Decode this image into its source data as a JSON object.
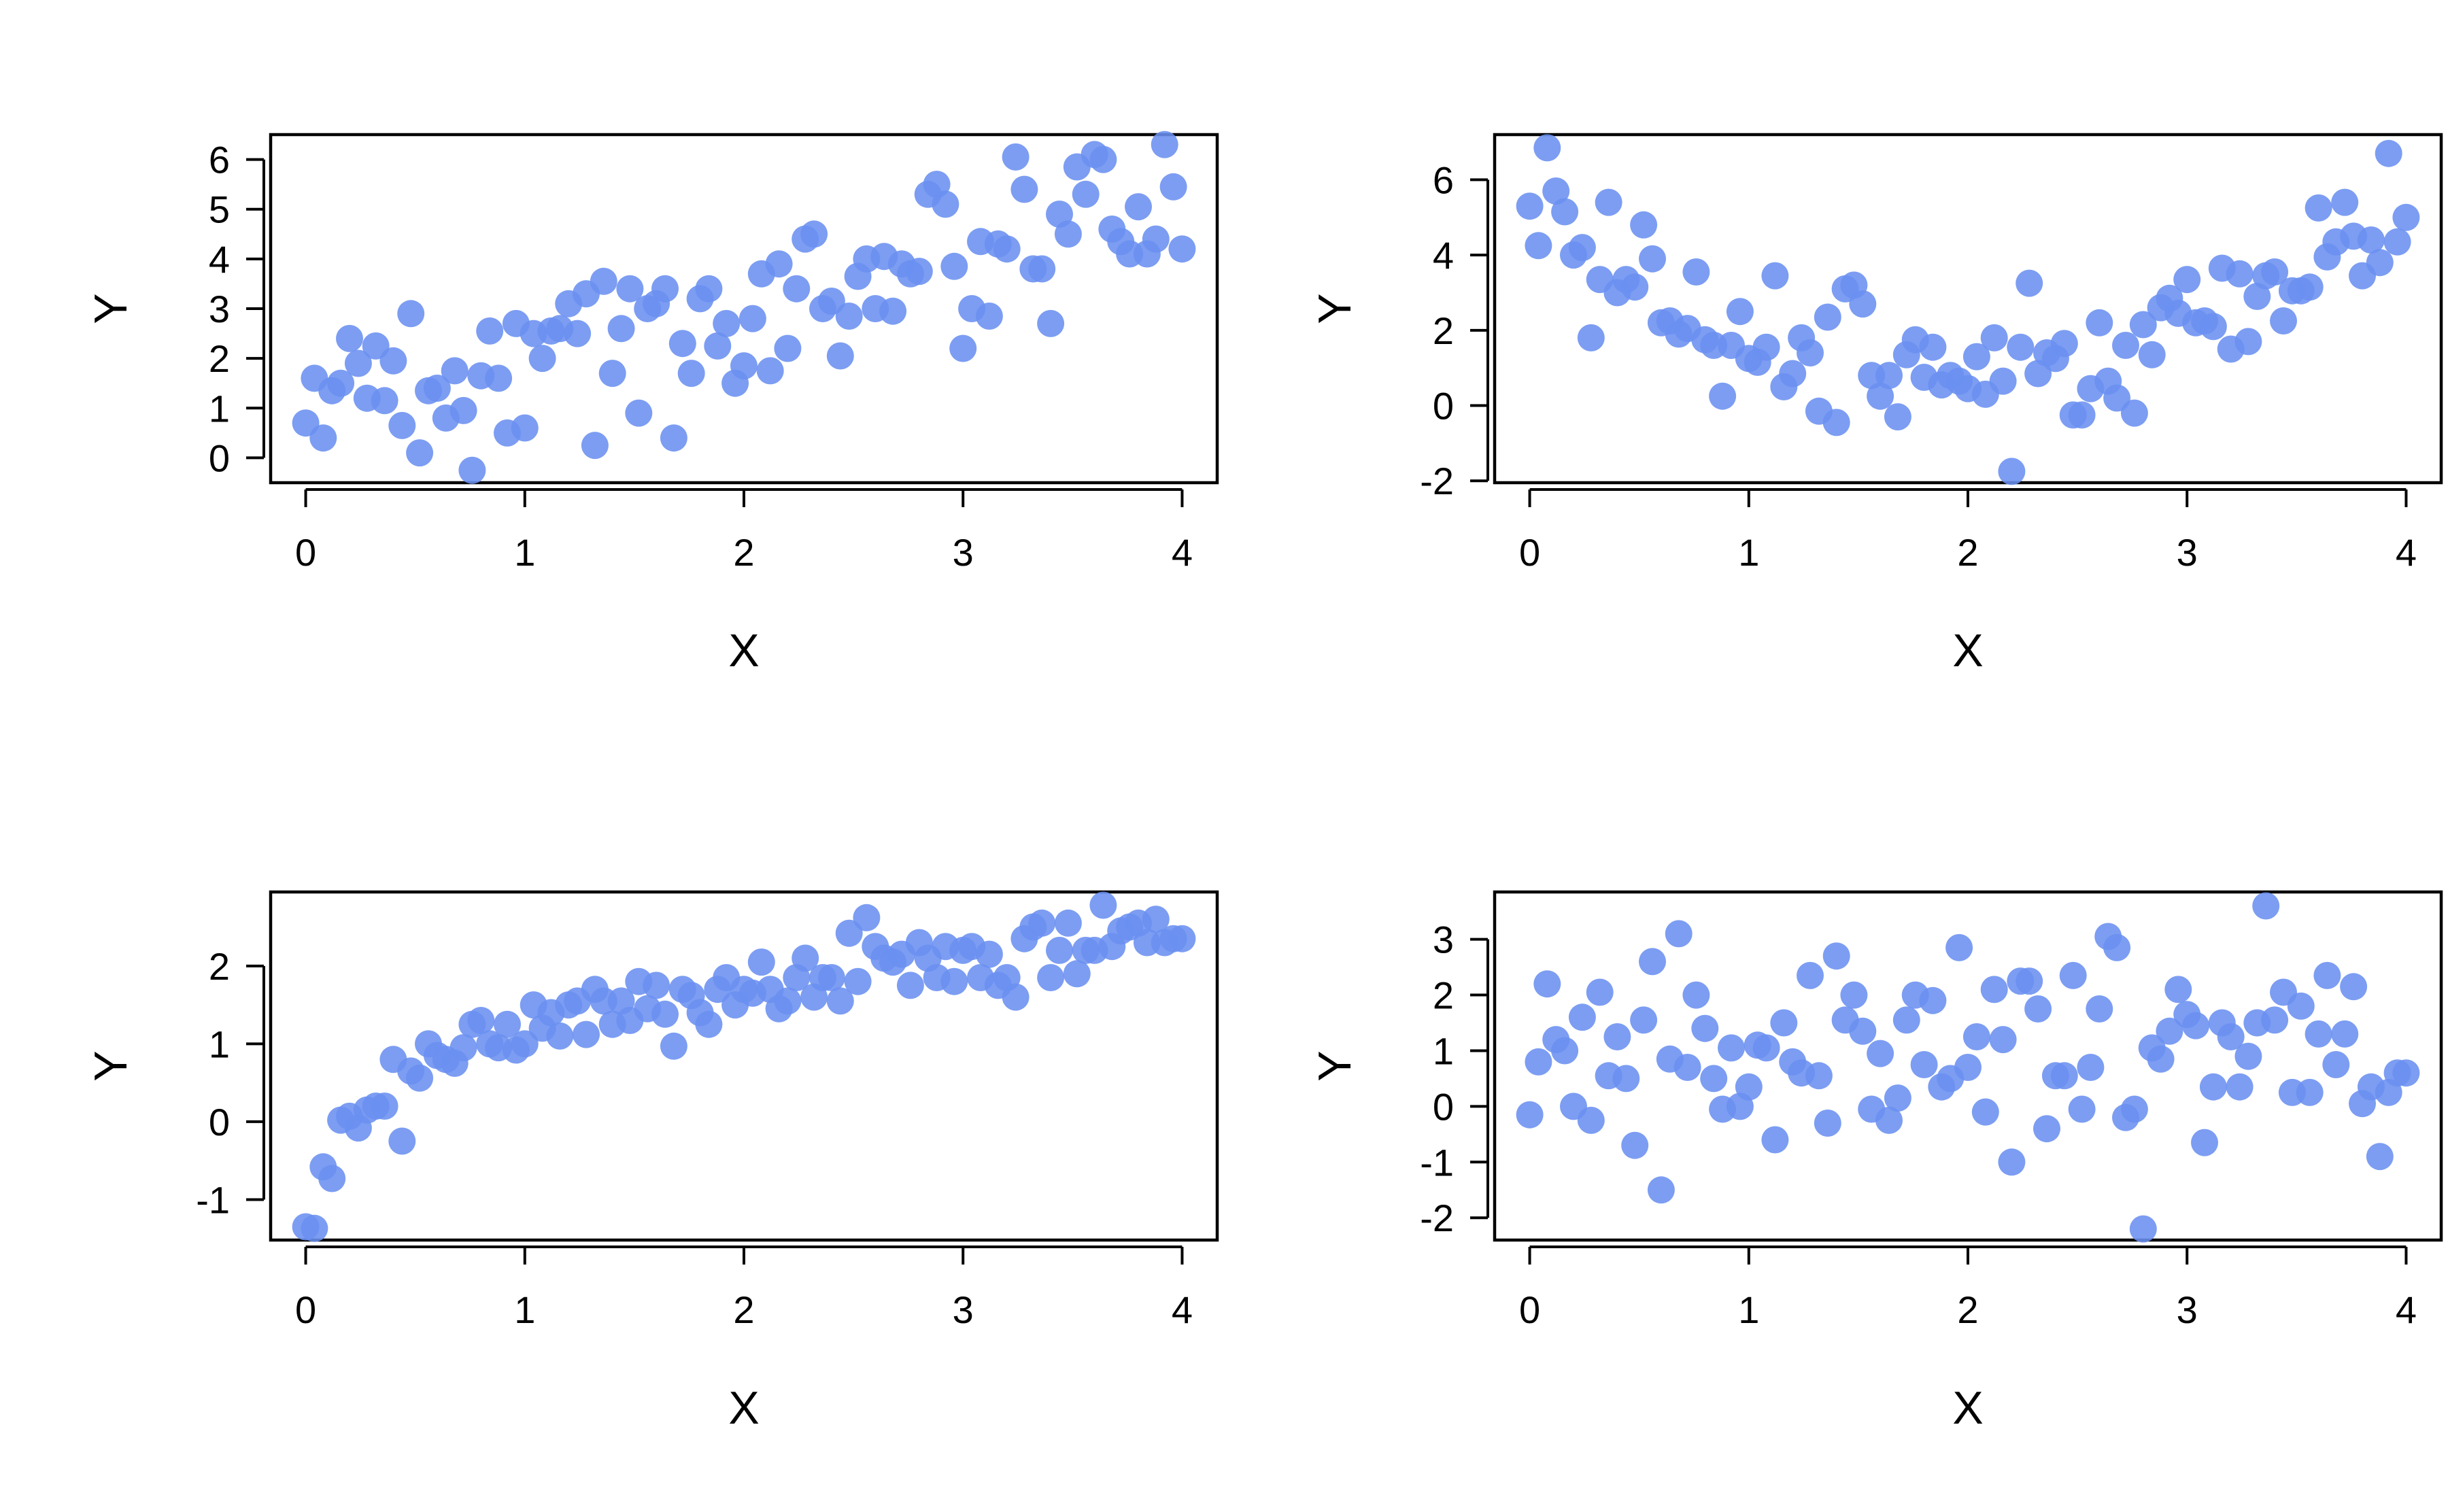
{
  "chart_data": [
    {
      "type": "scatter",
      "panel": "top-left",
      "xlabel": "X",
      "ylabel": "Y",
      "xlim": [
        -0.16,
        4.16
      ],
      "ylim": [
        -0.5,
        6.5
      ],
      "xticks": [
        0,
        1,
        2,
        3,
        4
      ],
      "yticks": [
        0,
        1,
        2,
        3,
        4,
        5,
        6
      ],
      "color": "#6a8ff0",
      "x": [
        0.0,
        0.04,
        0.08,
        0.12,
        0.16,
        0.2,
        0.24,
        0.28,
        0.32,
        0.36,
        0.4,
        0.44,
        0.48,
        0.52,
        0.56,
        0.6,
        0.64,
        0.68,
        0.72,
        0.76,
        0.8,
        0.84,
        0.88,
        0.92,
        0.96,
        1.0,
        1.04,
        1.08,
        1.12,
        1.16,
        1.2,
        1.24,
        1.28,
        1.32,
        1.36,
        1.4,
        1.44,
        1.48,
        1.52,
        1.56,
        1.6,
        1.64,
        1.68,
        1.72,
        1.76,
        1.8,
        1.84,
        1.88,
        1.92,
        1.96,
        2.0,
        2.04,
        2.08,
        2.12,
        2.16,
        2.2,
        2.24,
        2.28,
        2.32,
        2.36,
        2.4,
        2.44,
        2.48,
        2.52,
        2.56,
        2.6,
        2.64,
        2.68,
        2.72,
        2.76,
        2.8,
        2.84,
        2.88,
        2.92,
        2.96,
        3.0,
        3.04,
        3.08,
        3.12,
        3.16,
        3.2,
        3.24,
        3.28,
        3.32,
        3.36,
        3.4,
        3.44,
        3.48,
        3.52,
        3.56,
        3.6,
        3.64,
        3.68,
        3.72,
        3.76,
        3.8,
        3.84,
        3.88,
        3.92,
        3.96,
        4.0
      ],
      "y": [
        0.7,
        1.6,
        0.4,
        1.35,
        1.5,
        2.4,
        1.9,
        1.2,
        2.25,
        1.15,
        1.95,
        0.65,
        2.9,
        0.1,
        1.35,
        1.4,
        0.8,
        1.75,
        0.95,
        -0.25,
        1.65,
        2.55,
        1.6,
        0.5,
        2.7,
        0.6,
        2.5,
        2.0,
        2.55,
        2.6,
        3.1,
        2.5,
        3.3,
        0.25,
        3.55,
        1.7,
        2.6,
        3.4,
        0.9,
        3.0,
        3.1,
        3.4,
        0.4,
        2.3,
        1.7,
        3.2,
        3.4,
        2.25,
        2.7,
        1.5,
        1.85,
        2.8,
        3.7,
        1.75,
        3.9,
        2.2,
        3.4,
        4.4,
        4.5,
        3.0,
        3.15,
        2.05,
        2.85,
        3.65,
        4.0,
        3.0,
        4.05,
        2.95,
        3.9,
        3.7,
        3.75,
        5.3,
        5.5,
        5.1,
        3.85,
        2.2,
        3.0,
        4.35,
        2.85,
        4.3,
        4.2,
        6.05,
        5.4,
        3.8,
        3.8,
        2.7,
        4.9,
        4.5,
        5.85,
        5.3,
        6.1,
        6.0,
        4.6,
        4.35,
        4.1,
        5.05,
        4.1,
        4.4,
        6.3,
        5.45,
        4.2
      ]
    },
    {
      "type": "scatter",
      "panel": "top-right",
      "xlabel": "X",
      "ylabel": "Y",
      "xlim": [
        -0.16,
        4.16
      ],
      "ylim": [
        -2.05,
        7.2
      ],
      "xticks": [
        0,
        1,
        2,
        3,
        4
      ],
      "yticks": [
        -2,
        0,
        2,
        4,
        6
      ],
      "color": "#6a8ff0",
      "x": [
        0.0,
        0.04,
        0.08,
        0.12,
        0.16,
        0.2,
        0.24,
        0.28,
        0.32,
        0.36,
        0.4,
        0.44,
        0.48,
        0.52,
        0.56,
        0.6,
        0.64,
        0.68,
        0.72,
        0.76,
        0.8,
        0.84,
        0.88,
        0.92,
        0.96,
        1.0,
        1.04,
        1.08,
        1.12,
        1.16,
        1.2,
        1.24,
        1.28,
        1.32,
        1.36,
        1.4,
        1.44,
        1.48,
        1.52,
        1.56,
        1.6,
        1.64,
        1.68,
        1.72,
        1.76,
        1.8,
        1.84,
        1.88,
        1.92,
        1.96,
        2.0,
        2.04,
        2.08,
        2.12,
        2.16,
        2.2,
        2.24,
        2.28,
        2.32,
        2.36,
        2.4,
        2.44,
        2.48,
        2.52,
        2.56,
        2.6,
        2.64,
        2.68,
        2.72,
        2.76,
        2.8,
        2.84,
        2.88,
        2.92,
        2.96,
        3.0,
        3.04,
        3.08,
        3.12,
        3.16,
        3.2,
        3.24,
        3.28,
        3.32,
        3.36,
        3.4,
        3.44,
        3.48,
        3.52,
        3.56,
        3.6,
        3.64,
        3.68,
        3.72,
        3.76,
        3.8,
        3.84,
        3.88,
        3.92,
        3.96,
        4.0
      ],
      "y": [
        5.3,
        4.25,
        6.85,
        5.7,
        5.15,
        4.0,
        4.2,
        1.8,
        3.35,
        5.4,
        3.0,
        3.35,
        3.15,
        4.8,
        3.9,
        2.2,
        2.25,
        1.9,
        2.05,
        3.55,
        1.75,
        1.6,
        0.25,
        1.6,
        2.5,
        1.25,
        1.15,
        1.55,
        3.45,
        0.5,
        0.85,
        1.8,
        1.4,
        -0.15,
        2.35,
        -0.45,
        3.1,
        3.2,
        2.7,
        0.8,
        0.25,
        0.8,
        -0.3,
        1.35,
        1.75,
        0.75,
        1.55,
        0.55,
        0.8,
        0.65,
        0.45,
        1.3,
        0.3,
        1.8,
        0.65,
        -1.75,
        1.55,
        3.25,
        0.85,
        1.4,
        1.25,
        1.65,
        -0.25,
        -0.25,
        0.45,
        2.2,
        0.65,
        0.2,
        1.6,
        -0.2,
        2.15,
        1.35,
        2.6,
        2.85,
        2.45,
        3.35,
        2.2,
        2.25,
        2.1,
        3.65,
        1.5,
        3.5,
        1.7,
        2.9,
        3.45,
        3.55,
        2.25,
        3.05,
        3.05,
        3.15,
        5.25,
        3.95,
        4.35,
        5.4,
        4.5,
        3.45,
        4.4,
        3.8,
        6.7,
        4.35,
        5.0
      ]
    },
    {
      "type": "scatter",
      "panel": "bottom-left",
      "xlabel": "X",
      "ylabel": "Y",
      "xlim": [
        -0.16,
        4.16
      ],
      "ylim": [
        -1.52,
        2.95
      ],
      "xticks": [
        0,
        1,
        2,
        3,
        4
      ],
      "yticks": [
        -1,
        0,
        1,
        2
      ],
      "color": "#6a8ff0",
      "x": [
        0.0,
        0.04,
        0.08,
        0.12,
        0.16,
        0.2,
        0.24,
        0.28,
        0.32,
        0.36,
        0.4,
        0.44,
        0.48,
        0.52,
        0.56,
        0.6,
        0.64,
        0.68,
        0.72,
        0.76,
        0.8,
        0.84,
        0.88,
        0.92,
        0.96,
        1.0,
        1.04,
        1.08,
        1.12,
        1.16,
        1.2,
        1.24,
        1.28,
        1.32,
        1.36,
        1.4,
        1.44,
        1.48,
        1.52,
        1.56,
        1.6,
        1.64,
        1.68,
        1.72,
        1.76,
        1.8,
        1.84,
        1.88,
        1.92,
        1.96,
        2.0,
        2.04,
        2.08,
        2.12,
        2.16,
        2.2,
        2.24,
        2.28,
        2.32,
        2.36,
        2.4,
        2.44,
        2.48,
        2.52,
        2.56,
        2.6,
        2.64,
        2.68,
        2.72,
        2.76,
        2.8,
        2.84,
        2.88,
        2.92,
        2.96,
        3.0,
        3.04,
        3.08,
        3.12,
        3.16,
        3.2,
        3.24,
        3.28,
        3.32,
        3.36,
        3.4,
        3.44,
        3.48,
        3.52,
        3.56,
        3.6,
        3.64,
        3.68,
        3.72,
        3.76,
        3.8,
        3.84,
        3.88,
        3.92,
        3.96,
        4.0
      ],
      "y": [
        -1.35,
        -1.37,
        -0.58,
        -0.73,
        0.02,
        0.07,
        -0.08,
        0.15,
        0.2,
        0.2,
        0.8,
        -0.25,
        0.65,
        0.56,
        1.0,
        0.85,
        0.8,
        0.75,
        0.95,
        1.25,
        1.3,
        1.0,
        0.95,
        1.25,
        0.92,
        1.0,
        1.5,
        1.2,
        1.4,
        1.1,
        1.5,
        1.55,
        1.12,
        1.7,
        1.55,
        1.25,
        1.55,
        1.3,
        1.8,
        1.45,
        1.75,
        1.38,
        0.97,
        1.7,
        1.62,
        1.4,
        1.25,
        1.7,
        1.85,
        1.5,
        1.7,
        1.65,
        2.05,
        1.7,
        1.45,
        1.55,
        1.85,
        2.1,
        1.6,
        1.85,
        1.85,
        1.55,
        2.42,
        1.8,
        2.62,
        2.25,
        2.1,
        2.05,
        2.15,
        1.75,
        2.3,
        2.1,
        1.85,
        2.25,
        1.8,
        2.2,
        2.25,
        1.85,
        2.15,
        1.75,
        1.85,
        1.6,
        2.35,
        2.5,
        2.55,
        1.85,
        2.2,
        2.55,
        1.9,
        2.2,
        2.2,
        2.78,
        2.25,
        2.45,
        2.5,
        2.55,
        2.3,
        2.6,
        2.3,
        2.35,
        2.35
      ]
    },
    {
      "type": "scatter",
      "panel": "bottom-right",
      "xlabel": "X",
      "ylabel": "Y",
      "xlim": [
        -0.16,
        4.16
      ],
      "ylim": [
        -2.4,
        3.85
      ],
      "xticks": [
        0,
        1,
        2,
        3,
        4
      ],
      "yticks": [
        -2,
        -1,
        0,
        1,
        2,
        3
      ],
      "color": "#6a8ff0",
      "x": [
        0.0,
        0.04,
        0.08,
        0.12,
        0.16,
        0.2,
        0.24,
        0.28,
        0.32,
        0.36,
        0.4,
        0.44,
        0.48,
        0.52,
        0.56,
        0.6,
        0.64,
        0.68,
        0.72,
        0.76,
        0.8,
        0.84,
        0.88,
        0.92,
        0.96,
        1.0,
        1.04,
        1.08,
        1.12,
        1.16,
        1.2,
        1.24,
        1.28,
        1.32,
        1.36,
        1.4,
        1.44,
        1.48,
        1.52,
        1.56,
        1.6,
        1.64,
        1.68,
        1.72,
        1.76,
        1.8,
        1.84,
        1.88,
        1.92,
        1.96,
        2.0,
        2.04,
        2.08,
        2.12,
        2.16,
        2.2,
        2.24,
        2.28,
        2.32,
        2.36,
        2.4,
        2.44,
        2.48,
        2.52,
        2.56,
        2.6,
        2.64,
        2.68,
        2.72,
        2.76,
        2.8,
        2.84,
        2.88,
        2.92,
        2.96,
        3.0,
        3.04,
        3.08,
        3.12,
        3.16,
        3.2,
        3.24,
        3.28,
        3.32,
        3.36,
        3.4,
        3.44,
        3.48,
        3.52,
        3.56,
        3.6,
        3.64,
        3.68,
        3.72,
        3.76,
        3.8,
        3.84,
        3.88,
        3.92,
        3.96,
        4.0
      ],
      "y": [
        -0.15,
        0.8,
        2.2,
        1.2,
        1.0,
        0.0,
        1.6,
        -0.25,
        2.05,
        0.55,
        1.25,
        0.5,
        -0.7,
        1.55,
        2.6,
        -1.5,
        0.85,
        3.1,
        0.7,
        2.0,
        1.4,
        0.5,
        -0.05,
        1.05,
        0.0,
        0.35,
        1.1,
        1.05,
        -0.6,
        1.5,
        0.8,
        0.6,
        2.35,
        0.55,
        -0.3,
        2.7,
        1.55,
        2.0,
        1.35,
        -0.05,
        0.95,
        -0.25,
        0.15,
        1.55,
        2.0,
        0.75,
        1.9,
        0.35,
        0.5,
        2.85,
        0.7,
        1.25,
        -0.1,
        2.1,
        1.2,
        -1.0,
        2.25,
        2.25,
        1.75,
        -0.4,
        0.55,
        0.55,
        2.35,
        -0.05,
        0.7,
        1.75,
        3.05,
        2.85,
        -0.2,
        -0.05,
        -2.2,
        1.05,
        0.85,
        1.35,
        2.1,
        1.65,
        1.45,
        -0.65,
        0.35,
        1.5,
        1.25,
        0.35,
        0.9,
        1.5,
        3.6,
        1.55,
        2.05,
        0.25,
        1.8,
        0.25,
        1.3,
        2.35,
        0.75,
        1.3,
        2.15,
        0.05,
        0.35,
        -0.9,
        0.25,
        0.6,
        0.6
      ]
    }
  ]
}
